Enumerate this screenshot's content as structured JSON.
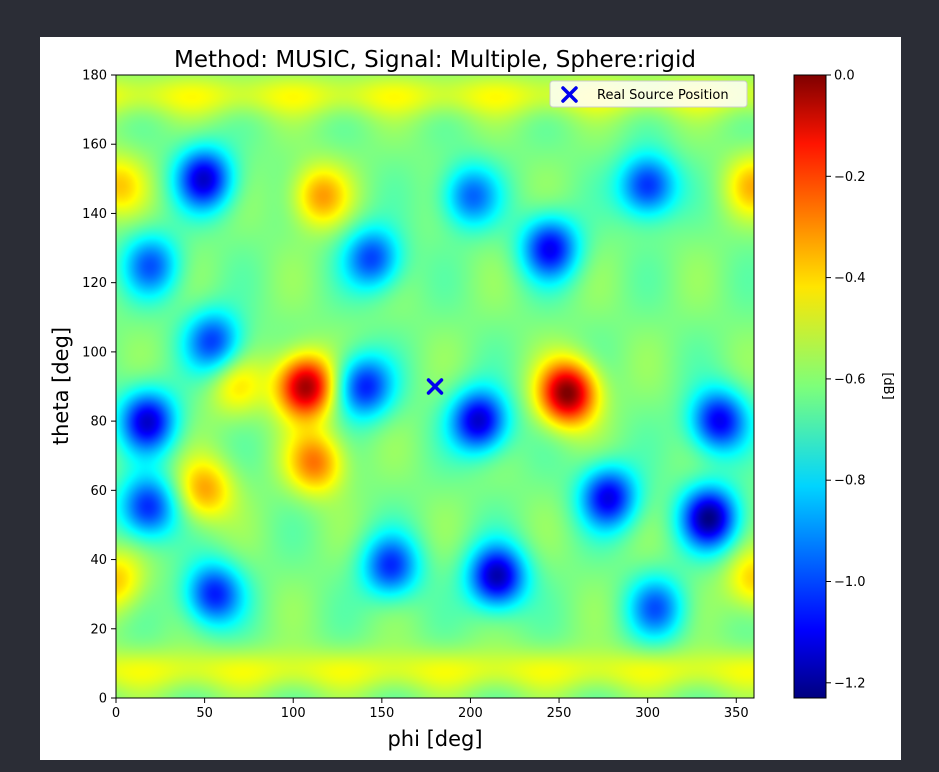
{
  "chart_data": {
    "type": "heatmap",
    "title": "Method: MUSIC, Signal: Multiple, Sphere:rigid",
    "xlabel": "phi [deg]",
    "ylabel": "theta [deg]",
    "xlim": [
      0,
      360
    ],
    "ylim": [
      0,
      180
    ],
    "xticks": [
      "0",
      "50",
      "100",
      "150",
      "200",
      "250",
      "300",
      "350"
    ],
    "yticks": [
      "0",
      "20",
      "40",
      "60",
      "80",
      "100",
      "120",
      "140",
      "160",
      "180"
    ],
    "colormap": "jet",
    "colorbar": {
      "label": "[dB]",
      "range": [
        -1.23,
        0.0
      ],
      "ticks": [
        "0.0",
        "−0.2",
        "−0.4",
        "−0.6",
        "−0.8",
        "−1.0",
        "−1.2"
      ]
    },
    "background_level": -0.62,
    "features": [
      {
        "phi": 107,
        "theta": 90,
        "value": -0.02
      },
      {
        "phi": 255,
        "theta": 88,
        "value": 0.0
      },
      {
        "phi": 113,
        "theta": 68,
        "value": -0.3
      },
      {
        "phi": 50,
        "theta": 60,
        "value": -0.35
      },
      {
        "phi": 115,
        "theta": 145,
        "value": -0.35
      },
      {
        "phi": 0,
        "theta": 148,
        "value": -0.4
      },
      {
        "phi": 360,
        "theta": 148,
        "value": -0.4
      },
      {
        "phi": 0,
        "theta": 34,
        "value": -0.4
      },
      {
        "phi": 360,
        "theta": 34,
        "value": -0.4
      },
      {
        "phi": 68,
        "theta": 90,
        "value": -0.45
      },
      {
        "phi": 50,
        "theta": 150,
        "value": -1.12
      },
      {
        "phi": 18,
        "theta": 80,
        "value": -1.12
      },
      {
        "phi": 18,
        "theta": 55,
        "value": -1.05
      },
      {
        "phi": 55,
        "theta": 30,
        "value": -1.05
      },
      {
        "phi": 155,
        "theta": 38,
        "value": -1.02
      },
      {
        "phi": 140,
        "theta": 90,
        "value": -1.05
      },
      {
        "phi": 205,
        "theta": 80,
        "value": -1.15
      },
      {
        "phi": 215,
        "theta": 35,
        "value": -1.18
      },
      {
        "phi": 245,
        "theta": 130,
        "value": -1.08
      },
      {
        "phi": 278,
        "theta": 58,
        "value": -1.1
      },
      {
        "phi": 300,
        "theta": 148,
        "value": -1.05
      },
      {
        "phi": 335,
        "theta": 52,
        "value": -1.2
      },
      {
        "phi": 340,
        "theta": 80,
        "value": -1.1
      },
      {
        "phi": 305,
        "theta": 26,
        "value": -0.95
      },
      {
        "phi": 55,
        "theta": 103,
        "value": -1.0
      },
      {
        "phi": 20,
        "theta": 125,
        "value": -0.95
      },
      {
        "phi": 145,
        "theta": 127,
        "value": -1.0
      },
      {
        "phi": 200,
        "theta": 145,
        "value": -0.95
      }
    ],
    "markers": [
      {
        "label": "Real Source Position",
        "phi": 180,
        "theta": 90,
        "symbol": "x",
        "color": "#0000ee"
      }
    ],
    "legend": {
      "position": "top-right"
    }
  }
}
